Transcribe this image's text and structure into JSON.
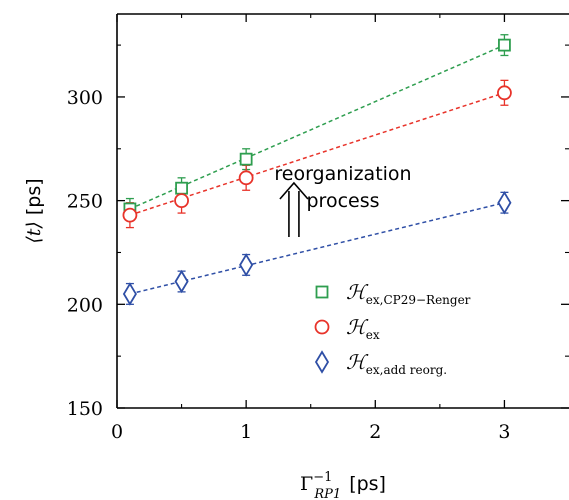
{
  "chart_data": {
    "type": "scatter",
    "title": "",
    "xlabel_main": "Γ",
    "xlabel_sup": "−1",
    "xlabel_sub": "RP1",
    "xlabel_unit": "[ps]",
    "ylabel_main": "⟨t⟩",
    "ylabel_unit": "[ps]",
    "xlim": [
      0,
      3.5
    ],
    "ylim": [
      150,
      340
    ],
    "xticks": [
      0,
      1,
      2,
      3
    ],
    "yticks": [
      150,
      200,
      250,
      300
    ],
    "grid": false,
    "legend_position": "bottom-right",
    "annotation": "reorganization\nprocess",
    "series": [
      {
        "name": "ℋ",
        "name_sub": "ex,CP29−Renger",
        "color": "#2e9e4f",
        "marker": "square",
        "x": [
          0.1,
          0.5,
          1.0,
          3.0
        ],
        "y": [
          246,
          256,
          270,
          325
        ],
        "err": [
          5,
          5,
          5,
          5
        ],
        "fit": [
          [
            0.1,
            246
          ],
          [
            3.0,
            325
          ]
        ]
      },
      {
        "name": "ℋ",
        "name_sub": "ex",
        "color": "#e8332a",
        "marker": "circle",
        "x": [
          0.1,
          0.5,
          1.0,
          3.0
        ],
        "y": [
          243,
          250,
          261,
          302
        ],
        "err": [
          6,
          6,
          6,
          6
        ],
        "fit": [
          [
            0.1,
            243
          ],
          [
            3.0,
            302
          ]
        ]
      },
      {
        "name": "ℋ",
        "name_sub": "ex,add reorg.",
        "color": "#2f4fa6",
        "marker": "diamond",
        "x": [
          0.1,
          0.5,
          1.0,
          3.0
        ],
        "y": [
          205,
          211,
          219,
          249
        ],
        "err": [
          5,
          5,
          5,
          5
        ],
        "fit": [
          [
            0.1,
            205
          ],
          [
            3.0,
            249
          ]
        ]
      }
    ]
  }
}
